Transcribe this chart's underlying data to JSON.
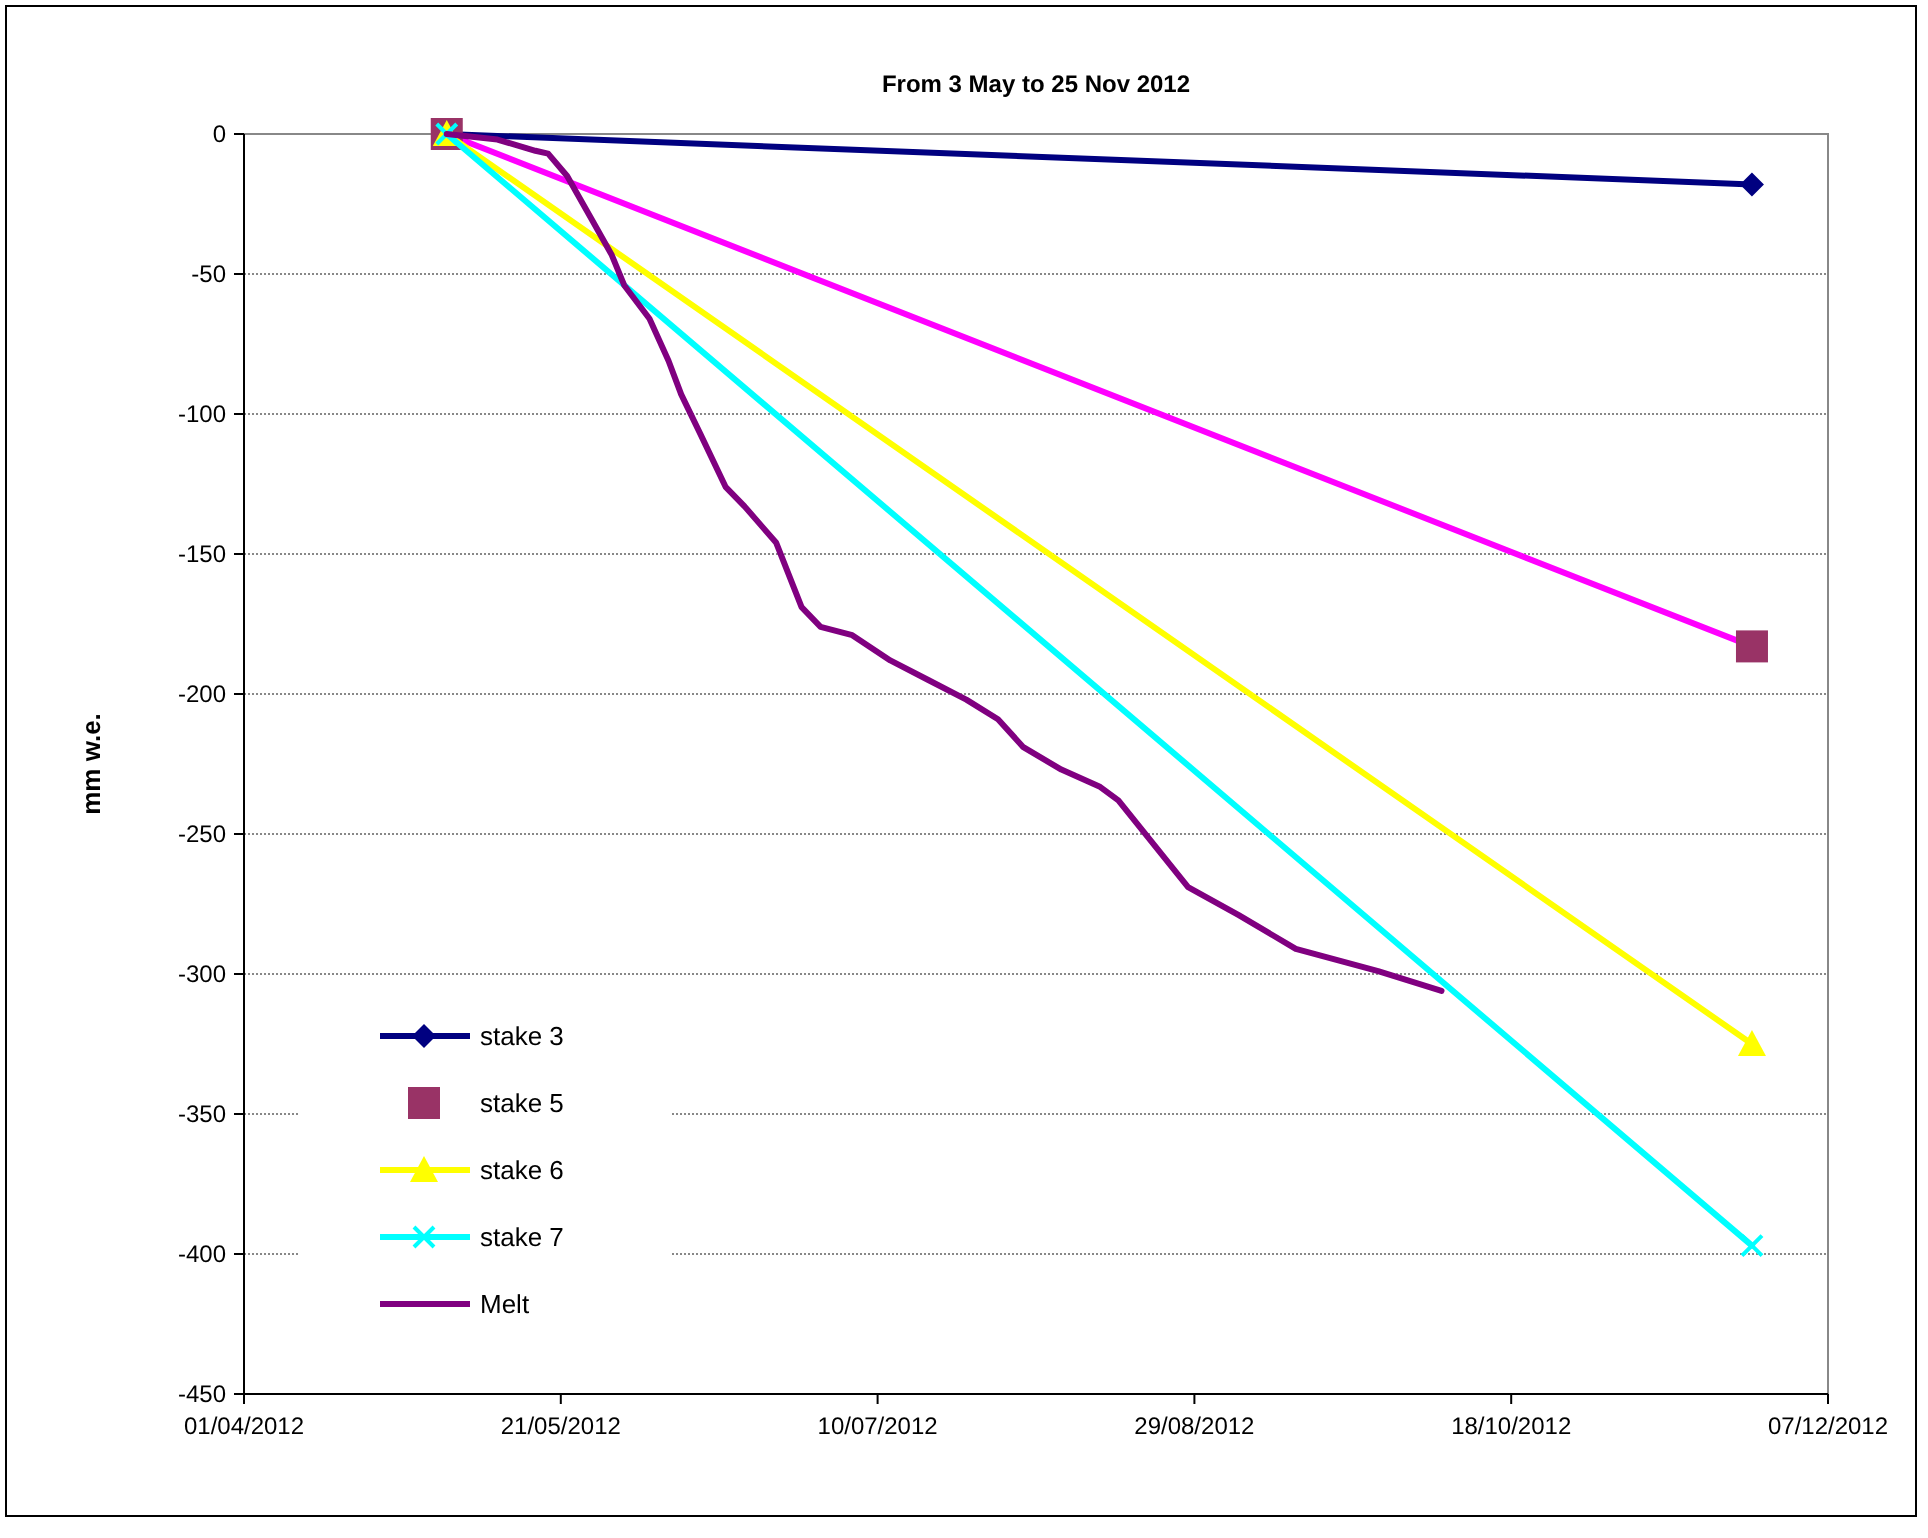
{
  "chart_data": {
    "type": "line",
    "title": "From 3 May to 25 Nov 2012",
    "ylabel": "mm w.e.",
    "xlim": [
      "2012-04-01",
      "2012-12-07"
    ],
    "xticks": [
      {
        "value": "2012-04-01",
        "label": "01/04/2012"
      },
      {
        "value": "2012-05-21",
        "label": "21/05/2012"
      },
      {
        "value": "2012-07-10",
        "label": "10/07/2012"
      },
      {
        "value": "2012-08-29",
        "label": "29/08/2012"
      },
      {
        "value": "2012-10-18",
        "label": "18/10/2012"
      },
      {
        "value": "2012-12-07",
        "label": "07/12/2012"
      }
    ],
    "ylim": [
      -450,
      0
    ],
    "yticks": [
      -450,
      -400,
      -350,
      -300,
      -250,
      -200,
      -150,
      -100,
      -50,
      0
    ],
    "grid": "y",
    "legend": "bottom left",
    "line_style": "solid",
    "series": [
      {
        "name": "stake 3",
        "color": "#000080",
        "marker": "diamond",
        "x": [
          "2012-05-03",
          "2012-11-25"
        ],
        "values": [
          0,
          -18
        ]
      },
      {
        "color": "#ff00ff",
        "marker": "none",
        "x": [
          "2012-05-03",
          "2012-11-25"
        ],
        "values": [
          0,
          -183
        ]
      },
      {
        "type": "scatter",
        "name": "stake 5",
        "color": "#993366",
        "marker": "square",
        "x": [
          "2012-05-03",
          "2012-11-25"
        ],
        "values": [
          0,
          -183
        ]
      },
      {
        "name": "stake 6",
        "color": "#ffff00",
        "marker": "triangle",
        "x": [
          "2012-05-03",
          "2012-11-25"
        ],
        "values": [
          0,
          -325
        ]
      },
      {
        "name": "stake 7",
        "color": "#00ffff",
        "marker": "cross",
        "x": [
          "2012-05-03",
          "2012-11-25"
        ],
        "values": [
          0,
          -397
        ]
      },
      {
        "name": "Melt",
        "color": "#800080",
        "marker": "none",
        "x": [
          "2012-05-03",
          "2012-05-11",
          "2012-05-17",
          "2012-05-19",
          "2012-05-22",
          "2012-05-26",
          "2012-05-29",
          "2012-05-31",
          "2012-06-04",
          "2012-06-07",
          "2012-06-09",
          "2012-06-12",
          "2012-06-16",
          "2012-06-19",
          "2012-06-24",
          "2012-06-28",
          "2012-07-01",
          "2012-07-06",
          "2012-07-12",
          "2012-07-18",
          "2012-07-24",
          "2012-07-29",
          "2012-08-02",
          "2012-08-08",
          "2012-08-14",
          "2012-08-17",
          "2012-08-28",
          "2012-09-05",
          "2012-09-14",
          "2012-09-27",
          "2012-10-07"
        ],
        "values": [
          0,
          -2,
          -6,
          -7,
          -15,
          -31,
          -43,
          -54,
          -66,
          -81,
          -93,
          -107,
          -126,
          -133,
          -146,
          -169,
          -176,
          -179,
          -188,
          -195,
          -202,
          -209,
          -219,
          -227,
          -233,
          -238,
          -269,
          -279,
          -291,
          -299,
          -306
        ]
      }
    ]
  }
}
